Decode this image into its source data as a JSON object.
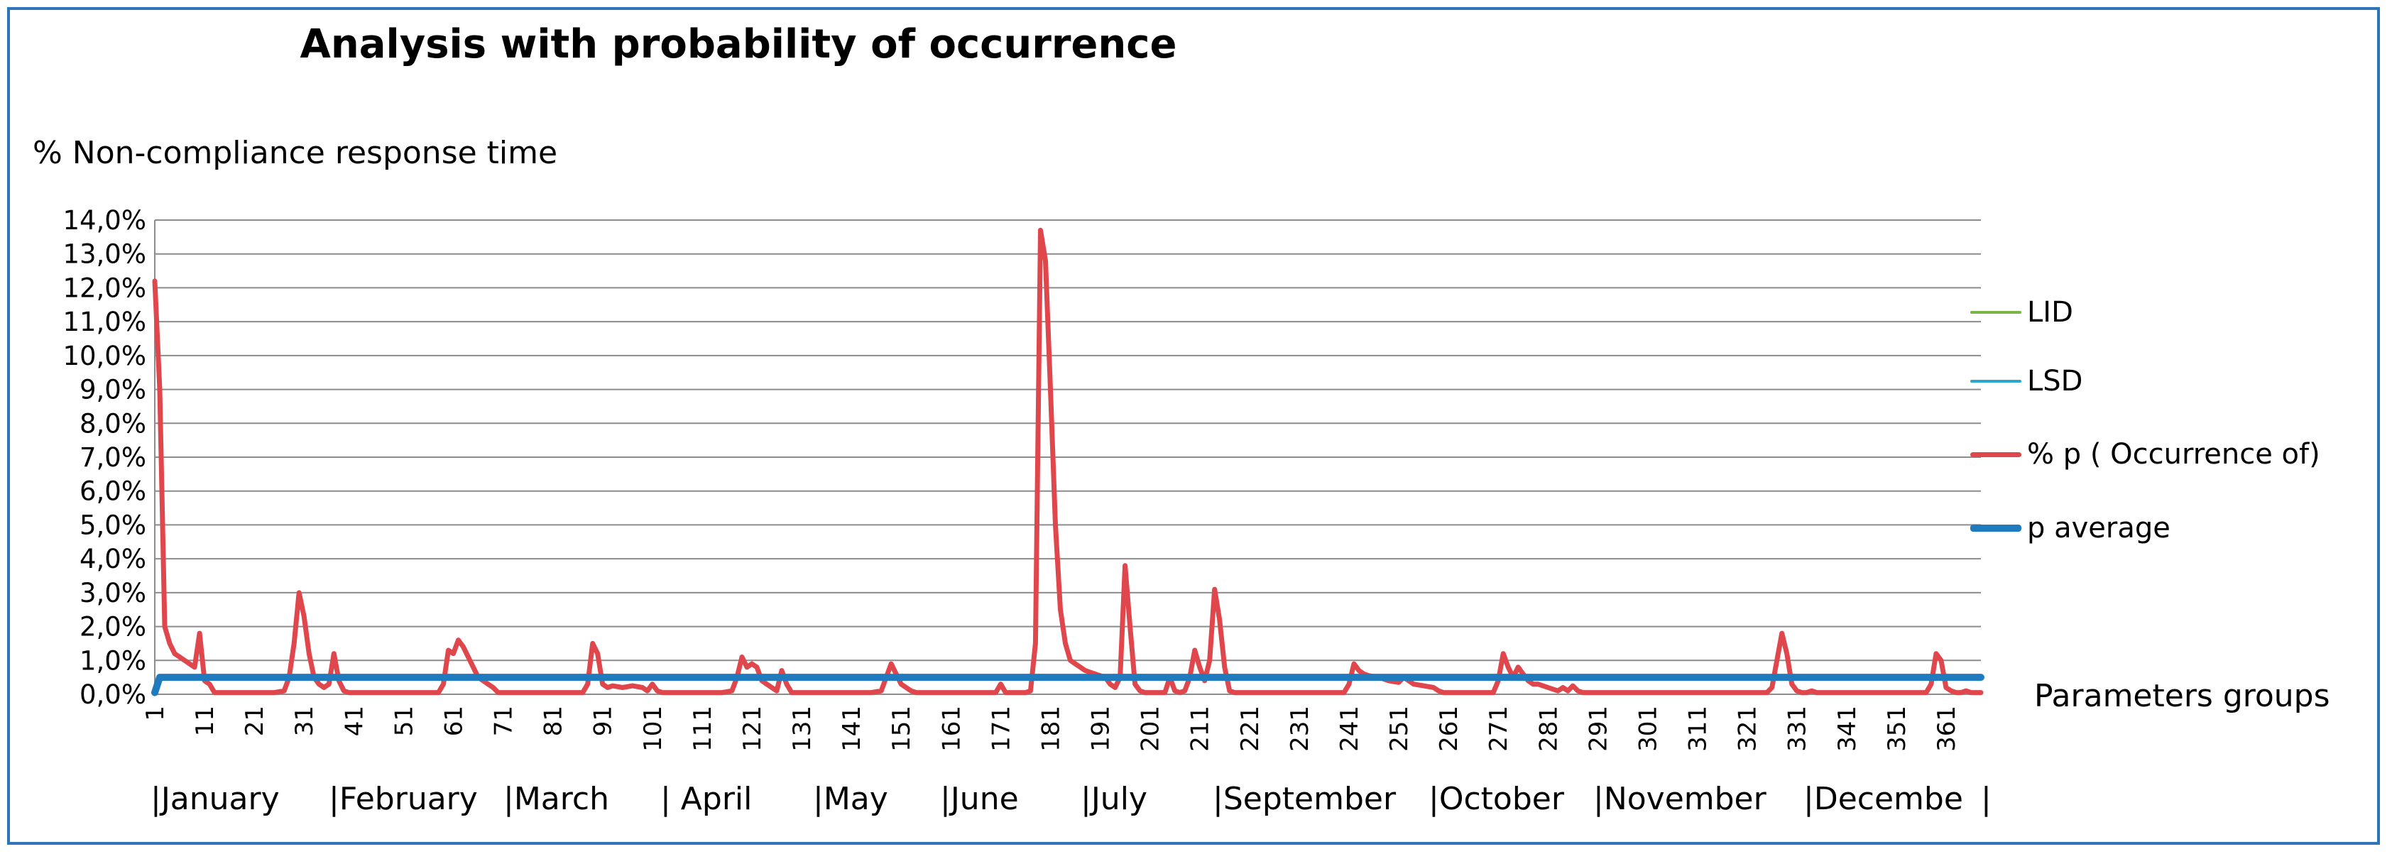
{
  "chart_data": {
    "type": "line",
    "title": "Analysis with probability of occurrence",
    "ylabel": "% Non-compliance response time",
    "xlabel": "Parameters groups",
    "xlim": [
      1,
      368
    ],
    "ylim": [
      0,
      14
    ],
    "y_ticks": [
      "0,0%",
      "1,0%",
      "2,0%",
      "3,0%",
      "4,0%",
      "5,0%",
      "6,0%",
      "7,0%",
      "8,0%",
      "9,0%",
      "10,0%",
      "11,0%",
      "12,0%",
      "13,0%",
      "14,0%"
    ],
    "x_ticks": [
      1,
      11,
      21,
      31,
      41,
      51,
      61,
      71,
      81,
      91,
      101,
      111,
      121,
      131,
      141,
      151,
      161,
      171,
      181,
      191,
      201,
      211,
      221,
      231,
      241,
      251,
      261,
      271,
      281,
      291,
      301,
      311,
      321,
      331,
      341,
      351,
      361
    ],
    "months": [
      "|January",
      "|February",
      "|March",
      "| April",
      "|May",
      "|June",
      "|July",
      "|September",
      "|October",
      "|November",
      "|Decembe",
      "|"
    ],
    "grid": true,
    "legend_position": "right",
    "series": [
      {
        "name": "LID",
        "color": "#7ab648",
        "values": []
      },
      {
        "name": "LSD",
        "color": "#2aa7c9",
        "values": []
      },
      {
        "name": "% p ( Occurrence of)",
        "color": "#e0474c",
        "points": [
          [
            1,
            12.2
          ],
          [
            2,
            9.0
          ],
          [
            3,
            2.0
          ],
          [
            4,
            1.5
          ],
          [
            5,
            1.2
          ],
          [
            6,
            1.1
          ],
          [
            7,
            1.0
          ],
          [
            8,
            0.9
          ],
          [
            9,
            0.8
          ],
          [
            10,
            1.8
          ],
          [
            11,
            0.4
          ],
          [
            12,
            0.3
          ],
          [
            13,
            0.05
          ],
          [
            14,
            0.05
          ],
          [
            15,
            0.05
          ],
          [
            16,
            0.05
          ],
          [
            20,
            0.05
          ],
          [
            25,
            0.05
          ],
          [
            27,
            0.1
          ],
          [
            28,
            0.5
          ],
          [
            29,
            1.5
          ],
          [
            30,
            3.0
          ],
          [
            31,
            2.3
          ],
          [
            32,
            1.2
          ],
          [
            33,
            0.5
          ],
          [
            34,
            0.3
          ],
          [
            35,
            0.2
          ],
          [
            36,
            0.3
          ],
          [
            37,
            1.2
          ],
          [
            38,
            0.4
          ],
          [
            39,
            0.1
          ],
          [
            40,
            0.05
          ],
          [
            50,
            0.05
          ],
          [
            58,
            0.05
          ],
          [
            59,
            0.3
          ],
          [
            60,
            1.3
          ],
          [
            61,
            1.2
          ],
          [
            62,
            1.6
          ],
          [
            63,
            1.4
          ],
          [
            64,
            1.1
          ],
          [
            65,
            0.8
          ],
          [
            66,
            0.5
          ],
          [
            67,
            0.4
          ],
          [
            68,
            0.3
          ],
          [
            69,
            0.2
          ],
          [
            70,
            0.05
          ],
          [
            80,
            0.05
          ],
          [
            87,
            0.05
          ],
          [
            88,
            0.3
          ],
          [
            89,
            1.5
          ],
          [
            90,
            1.2
          ],
          [
            91,
            0.3
          ],
          [
            92,
            0.2
          ],
          [
            93,
            0.25
          ],
          [
            95,
            0.2
          ],
          [
            97,
            0.25
          ],
          [
            99,
            0.2
          ],
          [
            100,
            0.1
          ],
          [
            101,
            0.3
          ],
          [
            102,
            0.1
          ],
          [
            103,
            0.05
          ],
          [
            115,
            0.05
          ],
          [
            117,
            0.1
          ],
          [
            118,
            0.5
          ],
          [
            119,
            1.1
          ],
          [
            120,
            0.8
          ],
          [
            121,
            0.9
          ],
          [
            122,
            0.8
          ],
          [
            123,
            0.4
          ],
          [
            124,
            0.3
          ],
          [
            125,
            0.2
          ],
          [
            126,
            0.1
          ],
          [
            127,
            0.7
          ],
          [
            128,
            0.3
          ],
          [
            129,
            0.05
          ],
          [
            145,
            0.05
          ],
          [
            147,
            0.1
          ],
          [
            148,
            0.5
          ],
          [
            149,
            0.9
          ],
          [
            150,
            0.6
          ],
          [
            151,
            0.3
          ],
          [
            152,
            0.2
          ],
          [
            153,
            0.1
          ],
          [
            154,
            0.05
          ],
          [
            170,
            0.05
          ],
          [
            171,
            0.3
          ],
          [
            172,
            0.05
          ],
          [
            176,
            0.05
          ],
          [
            177,
            0.1
          ],
          [
            178,
            1.5
          ],
          [
            179,
            13.7
          ],
          [
            180,
            12.8
          ],
          [
            181,
            9.0
          ],
          [
            182,
            5.0
          ],
          [
            183,
            2.5
          ],
          [
            184,
            1.5
          ],
          [
            185,
            1.0
          ],
          [
            186,
            0.9
          ],
          [
            187,
            0.8
          ],
          [
            188,
            0.7
          ],
          [
            189,
            0.65
          ],
          [
            190,
            0.6
          ],
          [
            191,
            0.55
          ],
          [
            192,
            0.5
          ],
          [
            193,
            0.3
          ],
          [
            194,
            0.2
          ],
          [
            195,
            0.5
          ],
          [
            196,
            3.8
          ],
          [
            197,
            2.0
          ],
          [
            198,
            0.3
          ],
          [
            199,
            0.1
          ],
          [
            200,
            0.05
          ],
          [
            204,
            0.05
          ],
          [
            205,
            0.5
          ],
          [
            206,
            0.1
          ],
          [
            207,
            0.05
          ],
          [
            208,
            0.1
          ],
          [
            209,
            0.5
          ],
          [
            210,
            1.3
          ],
          [
            211,
            0.8
          ],
          [
            212,
            0.4
          ],
          [
            213,
            1.0
          ],
          [
            214,
            3.1
          ],
          [
            215,
            2.2
          ],
          [
            216,
            0.8
          ],
          [
            217,
            0.1
          ],
          [
            218,
            0.05
          ],
          [
            240,
            0.05
          ],
          [
            241,
            0.3
          ],
          [
            242,
            0.9
          ],
          [
            243,
            0.7
          ],
          [
            244,
            0.6
          ],
          [
            245,
            0.55
          ],
          [
            247,
            0.5
          ],
          [
            249,
            0.4
          ],
          [
            251,
            0.35
          ],
          [
            252,
            0.5
          ],
          [
            253,
            0.4
          ],
          [
            254,
            0.3
          ],
          [
            256,
            0.25
          ],
          [
            258,
            0.2
          ],
          [
            259,
            0.1
          ],
          [
            260,
            0.05
          ],
          [
            270,
            0.05
          ],
          [
            271,
            0.4
          ],
          [
            272,
            1.2
          ],
          [
            273,
            0.8
          ],
          [
            274,
            0.5
          ],
          [
            275,
            0.8
          ],
          [
            276,
            0.6
          ],
          [
            277,
            0.4
          ],
          [
            278,
            0.3
          ],
          [
            279,
            0.3
          ],
          [
            281,
            0.2
          ],
          [
            283,
            0.1
          ],
          [
            284,
            0.2
          ],
          [
            285,
            0.1
          ],
          [
            286,
            0.25
          ],
          [
            287,
            0.1
          ],
          [
            288,
            0.05
          ],
          [
            325,
            0.05
          ],
          [
            326,
            0.2
          ],
          [
            327,
            1.0
          ],
          [
            328,
            1.8
          ],
          [
            329,
            1.2
          ],
          [
            330,
            0.3
          ],
          [
            331,
            0.1
          ],
          [
            332,
            0.05
          ],
          [
            333,
            0.05
          ],
          [
            334,
            0.1
          ],
          [
            335,
            0.05
          ],
          [
            357,
            0.05
          ],
          [
            358,
            0.3
          ],
          [
            359,
            1.2
          ],
          [
            360,
            1.0
          ],
          [
            361,
            0.2
          ],
          [
            362,
            0.1
          ],
          [
            363,
            0.05
          ],
          [
            364,
            0.05
          ],
          [
            365,
            0.1
          ],
          [
            366,
            0.05
          ],
          [
            368,
            0.05
          ]
        ]
      },
      {
        "name": "p average",
        "color": "#1f7bbd",
        "points": [
          [
            1,
            0.05
          ],
          [
            2,
            0.5
          ],
          [
            368,
            0.5
          ]
        ]
      }
    ]
  }
}
